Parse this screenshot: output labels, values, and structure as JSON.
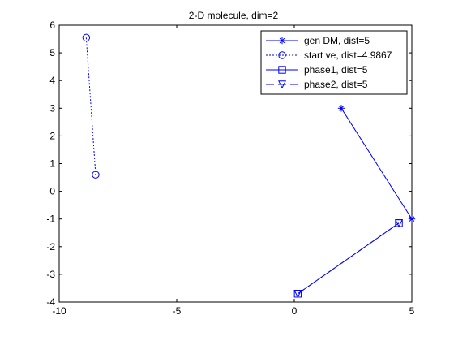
{
  "colors": {
    "series": "#0000FF",
    "axes": "#000000",
    "background": "#FFFFFF"
  },
  "chart_data": {
    "type": "line",
    "title": "2-D molecule, dim=2",
    "xlabel": "",
    "ylabel": "",
    "xlim": [
      -10,
      5
    ],
    "ylim": [
      -4,
      6
    ],
    "xticks": [
      -10,
      -5,
      0,
      5
    ],
    "yticks": [
      -4,
      -3,
      -2,
      -1,
      0,
      1,
      2,
      3,
      4,
      5,
      6
    ],
    "grid": false,
    "legend_position": "top-right",
    "series": [
      {
        "name": "gen DM, dist=5",
        "marker": "asterisk",
        "line": "solid",
        "points": [
          [
            2,
            3
          ],
          [
            5,
            -1
          ]
        ]
      },
      {
        "name": "start ve, dist=4.9867",
        "marker": "circle",
        "line": "dotted",
        "points": [
          [
            -8.85,
            5.55
          ],
          [
            -8.45,
            0.6
          ]
        ]
      },
      {
        "name": "phase1, dist=5",
        "marker": "square",
        "line": "solid",
        "points": [
          [
            0.15,
            -3.7
          ],
          [
            4.45,
            -1.15
          ]
        ]
      },
      {
        "name": "phase2, dist=5",
        "marker": "triangle-down",
        "line": "dashed",
        "points": [
          [
            0.15,
            -3.7
          ],
          [
            4.45,
            -1.15
          ]
        ]
      }
    ]
  }
}
